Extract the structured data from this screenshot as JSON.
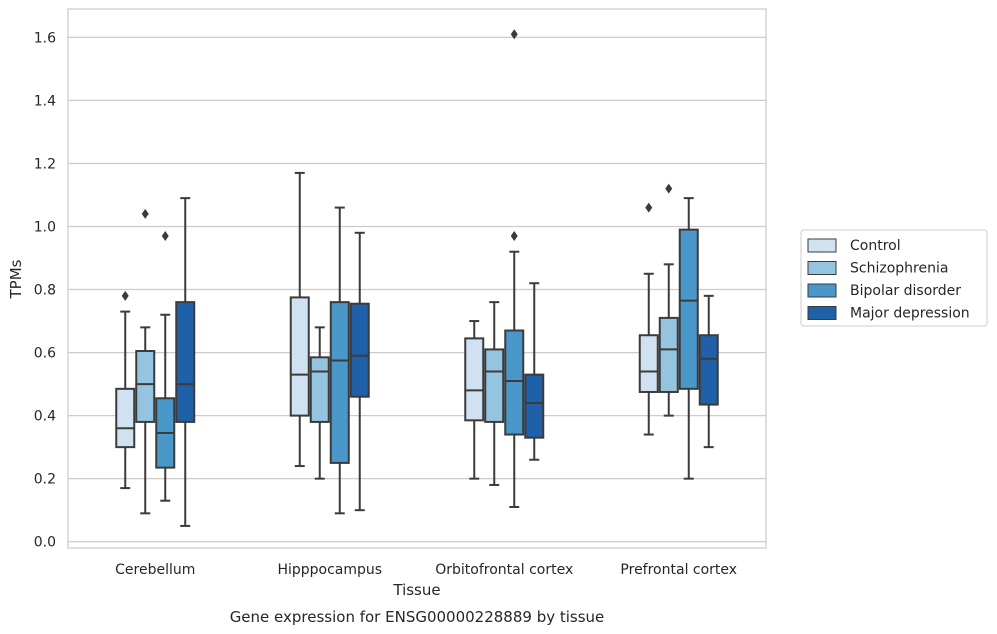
{
  "chart_data": {
    "type": "boxplot",
    "title": "",
    "caption": "Gene expression for ENSG00000228889 by tissue",
    "xlabel": "Tissue",
    "ylabel": "TPMs",
    "ylim": [
      -0.02,
      1.69
    ],
    "yticks": [
      0.0,
      0.2,
      0.4,
      0.6,
      0.8,
      1.0,
      1.2,
      1.4,
      1.6
    ],
    "ytick_labels": [
      "0.0",
      "0.2",
      "0.4",
      "0.6",
      "0.8",
      "1.0",
      "1.2",
      "1.4",
      "1.6"
    ],
    "grid": true,
    "legend_position": "outside-right",
    "categories": [
      "Cerebellum",
      "Hipppocampus",
      "Orbitofrontal cortex",
      "Prefrontal cortex"
    ],
    "series": [
      {
        "name": "Control",
        "color": "#d0e1f2",
        "boxes": [
          {
            "whisker_low": 0.17,
            "q1": 0.3,
            "median": 0.36,
            "q3": 0.485,
            "whisker_high": 0.73,
            "outliers": [
              0.78
            ]
          },
          {
            "whisker_low": 0.24,
            "q1": 0.4,
            "median": 0.53,
            "q3": 0.775,
            "whisker_high": 1.17,
            "outliers": []
          },
          {
            "whisker_low": 0.2,
            "q1": 0.385,
            "median": 0.48,
            "q3": 0.645,
            "whisker_high": 0.7,
            "outliers": []
          },
          {
            "whisker_low": 0.34,
            "q1": 0.475,
            "median": 0.54,
            "q3": 0.655,
            "whisker_high": 0.85,
            "outliers": [
              1.06
            ]
          }
        ]
      },
      {
        "name": "Schizophrenia",
        "color": "#94c4df",
        "boxes": [
          {
            "whisker_low": 0.09,
            "q1": 0.38,
            "median": 0.5,
            "q3": 0.605,
            "whisker_high": 0.68,
            "outliers": [
              1.04
            ]
          },
          {
            "whisker_low": 0.2,
            "q1": 0.38,
            "median": 0.54,
            "q3": 0.585,
            "whisker_high": 0.68,
            "outliers": []
          },
          {
            "whisker_low": 0.18,
            "q1": 0.38,
            "median": 0.54,
            "q3": 0.61,
            "whisker_high": 0.76,
            "outliers": []
          },
          {
            "whisker_low": 0.4,
            "q1": 0.475,
            "median": 0.61,
            "q3": 0.71,
            "whisker_high": 0.88,
            "outliers": [
              1.12
            ]
          }
        ]
      },
      {
        "name": "Bipolar disorder",
        "color": "#4a98c9",
        "boxes": [
          {
            "whisker_low": 0.13,
            "q1": 0.235,
            "median": 0.345,
            "q3": 0.455,
            "whisker_high": 0.72,
            "outliers": [
              0.97
            ]
          },
          {
            "whisker_low": 0.09,
            "q1": 0.25,
            "median": 0.575,
            "q3": 0.76,
            "whisker_high": 1.06,
            "outliers": []
          },
          {
            "whisker_low": 0.11,
            "q1": 0.34,
            "median": 0.51,
            "q3": 0.67,
            "whisker_high": 0.92,
            "outliers": [
              0.97,
              1.61
            ]
          },
          {
            "whisker_low": 0.2,
            "q1": 0.485,
            "median": 0.765,
            "q3": 0.99,
            "whisker_high": 1.09,
            "outliers": []
          }
        ]
      },
      {
        "name": "Major depression",
        "color": "#2060a8",
        "boxes": [
          {
            "whisker_low": 0.05,
            "q1": 0.38,
            "median": 0.5,
            "q3": 0.76,
            "whisker_high": 1.09,
            "outliers": []
          },
          {
            "whisker_low": 0.1,
            "q1": 0.46,
            "median": 0.59,
            "q3": 0.755,
            "whisker_high": 0.98,
            "outliers": []
          },
          {
            "whisker_low": 0.26,
            "q1": 0.33,
            "median": 0.44,
            "q3": 0.53,
            "whisker_high": 0.82,
            "outliers": []
          },
          {
            "whisker_low": 0.3,
            "q1": 0.435,
            "median": 0.58,
            "q3": 0.655,
            "whisker_high": 0.78,
            "outliers": []
          }
        ]
      }
    ]
  }
}
